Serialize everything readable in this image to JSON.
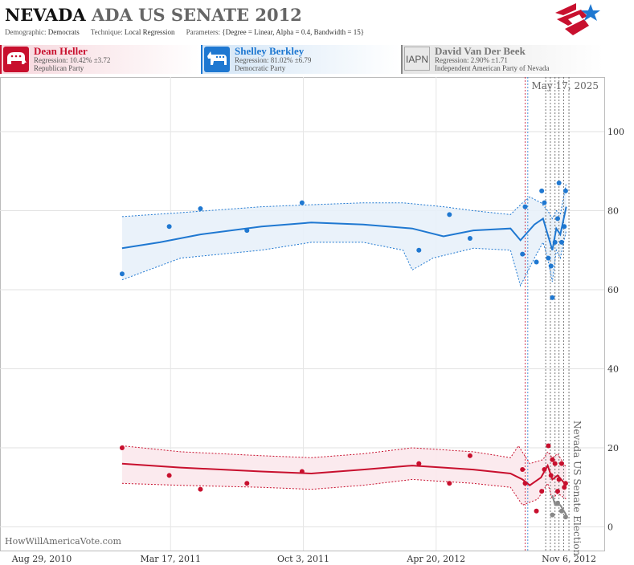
{
  "header": {
    "title_state": "NEVADA",
    "title_rest": "ADA US SENATE 2012",
    "demographic_label": "Demographic:",
    "demographic": "Democrats",
    "technique_label": "Technique:",
    "technique": "Local Regression",
    "parameters_label": "Parameters:",
    "parameters": "{Degree = Linear, Alpha = 0.4, Bandwidth = 15}"
  },
  "candidates": [
    {
      "name": "Dean Heller",
      "regression": "Regression: 10.42% ±3.72",
      "party": "Republican Party",
      "color": "#c8102e",
      "icon": "elephant-icon"
    },
    {
      "name": "Shelley Berkley",
      "regression": "Regression: 81.02% ±6.79",
      "party": "Democratic Party",
      "color": "#1f78d1",
      "icon": "donkey-icon"
    },
    {
      "name": "David Van Der Beek",
      "regression": "Regression: 2.90% ±1.71",
      "party": "Independent American Party  of Nevada",
      "color": "#888888",
      "icon_text": "IAPN"
    }
  ],
  "footer": {
    "watermark": "HowWillAmericaVote.com"
  },
  "chart_data": {
    "type": "scatter",
    "current_date": "May 17, 2025",
    "election_label": "Nevada US Senate Election",
    "x_ticks": [
      "Aug 29, 2010",
      "Mar 17, 2011",
      "Oct 3, 2011",
      "Apr 20, 2012",
      "Nov 6, 2012"
    ],
    "x_range": [
      "2010-08-29",
      "2012-11-12"
    ],
    "y_ticks": [
      0,
      20,
      40,
      60,
      80,
      100
    ],
    "ylim": [
      -6,
      113
    ],
    "grid": true,
    "marker_dates": [
      "2012-09-01",
      "2012-09-05",
      "2012-10-02",
      "2012-10-09",
      "2012-10-16",
      "2012-10-22",
      "2012-10-29",
      "2012-11-06"
    ],
    "marker_colors": [
      "#c8102e",
      "#1f78d1",
      "#555555",
      "#555555",
      "#555555",
      "#555555",
      "#555555",
      "#555555"
    ],
    "series": [
      {
        "name": "Shelley Berkley",
        "color": "#1f78d1",
        "fill": "#e8f1fa",
        "points": [
          [
            "2011-01-03",
            64
          ],
          [
            "2011-03-15",
            76
          ],
          [
            "2011-05-01",
            80.5
          ],
          [
            "2011-07-10",
            75
          ],
          [
            "2011-10-01",
            82
          ],
          [
            "2012-03-25",
            70
          ],
          [
            "2012-05-10",
            79
          ],
          [
            "2012-06-10",
            73
          ],
          [
            "2012-08-28",
            69
          ],
          [
            "2012-09-01",
            81
          ],
          [
            "2012-09-18",
            67
          ],
          [
            "2012-09-26",
            85
          ],
          [
            "2012-09-30",
            82
          ],
          [
            "2012-10-06",
            68
          ],
          [
            "2012-10-10",
            66
          ],
          [
            "2012-10-12",
            58
          ],
          [
            "2012-10-16",
            72
          ],
          [
            "2012-10-20",
            78
          ],
          [
            "2012-10-22",
            87
          ],
          [
            "2012-10-26",
            72
          ],
          [
            "2012-10-30",
            76
          ],
          [
            "2012-11-01",
            85
          ]
        ],
        "fit": [
          [
            "2011-01-03",
            70.5
          ],
          [
            "2011-03-01",
            72
          ],
          [
            "2011-05-01",
            74
          ],
          [
            "2011-08-01",
            76
          ],
          [
            "2011-10-15",
            77
          ],
          [
            "2012-01-01",
            76.5
          ],
          [
            "2012-03-15",
            75.5
          ],
          [
            "2012-05-01",
            73.5
          ],
          [
            "2012-06-15",
            75
          ],
          [
            "2012-08-10",
            75.5
          ],
          [
            "2012-08-25",
            72.5
          ],
          [
            "2012-09-15",
            76.5
          ],
          [
            "2012-09-28",
            78
          ],
          [
            "2012-10-05",
            74
          ],
          [
            "2012-10-12",
            70
          ],
          [
            "2012-10-18",
            75.5
          ],
          [
            "2012-10-24",
            74
          ],
          [
            "2012-11-02",
            81
          ]
        ],
        "upper": [
          [
            "2011-01-03",
            78.5
          ],
          [
            "2011-04-01",
            79.5
          ],
          [
            "2011-08-01",
            81
          ],
          [
            "2011-10-15",
            81.5
          ],
          [
            "2012-01-01",
            82
          ],
          [
            "2012-03-01",
            82
          ],
          [
            "2012-05-01",
            81
          ],
          [
            "2012-06-15",
            80
          ],
          [
            "2012-08-10",
            79
          ],
          [
            "2012-08-28",
            82
          ],
          [
            "2012-09-08",
            83.5
          ],
          [
            "2012-09-25",
            82
          ],
          [
            "2012-10-05",
            80
          ],
          [
            "2012-10-12",
            78
          ],
          [
            "2012-10-18",
            80
          ],
          [
            "2012-10-24",
            79
          ],
          [
            "2012-11-02",
            87
          ]
        ],
        "lower": [
          [
            "2011-01-03",
            62.5
          ],
          [
            "2011-04-01",
            68
          ],
          [
            "2011-08-01",
            70
          ],
          [
            "2011-10-15",
            72
          ],
          [
            "2012-01-01",
            72
          ],
          [
            "2012-03-01",
            70
          ],
          [
            "2012-03-15",
            65
          ],
          [
            "2012-04-15",
            68
          ],
          [
            "2012-06-15",
            70.5
          ],
          [
            "2012-08-10",
            70
          ],
          [
            "2012-08-25",
            61
          ],
          [
            "2012-09-15",
            68
          ],
          [
            "2012-09-28",
            72
          ],
          [
            "2012-10-05",
            68
          ],
          [
            "2012-10-12",
            62
          ],
          [
            "2012-10-18",
            70
          ],
          [
            "2012-10-24",
            68
          ],
          [
            "2012-11-02",
            75
          ]
        ]
      },
      {
        "name": "Dean Heller",
        "color": "#c8102e",
        "fill": "#fbe8ec",
        "points": [
          [
            "2011-01-03",
            20
          ],
          [
            "2011-03-15",
            13
          ],
          [
            "2011-05-01",
            9.5
          ],
          [
            "2011-07-10",
            11
          ],
          [
            "2011-10-01",
            14
          ],
          [
            "2012-03-25",
            16
          ],
          [
            "2012-05-10",
            11
          ],
          [
            "2012-06-10",
            18
          ],
          [
            "2012-08-28",
            14.5
          ],
          [
            "2012-09-01",
            11
          ],
          [
            "2012-09-18",
            4
          ],
          [
            "2012-09-26",
            9
          ],
          [
            "2012-09-30",
            14.5
          ],
          [
            "2012-10-06",
            20.5
          ],
          [
            "2012-10-10",
            13
          ],
          [
            "2012-10-12",
            17
          ],
          [
            "2012-10-16",
            16
          ],
          [
            "2012-10-20",
            9
          ],
          [
            "2012-10-22",
            12
          ],
          [
            "2012-10-26",
            16
          ],
          [
            "2012-10-30",
            10
          ],
          [
            "2012-11-01",
            11
          ]
        ],
        "fit": [
          [
            "2011-01-03",
            16
          ],
          [
            "2011-04-01",
            15
          ],
          [
            "2011-08-01",
            14
          ],
          [
            "2011-10-15",
            13.5
          ],
          [
            "2012-01-01",
            14.5
          ],
          [
            "2012-03-15",
            15.5
          ],
          [
            "2012-05-01",
            15
          ],
          [
            "2012-06-15",
            14.5
          ],
          [
            "2012-08-10",
            13.5
          ],
          [
            "2012-08-28",
            12
          ],
          [
            "2012-09-08",
            10.5
          ],
          [
            "2012-09-25",
            12.5
          ],
          [
            "2012-10-05",
            15.5
          ],
          [
            "2012-10-12",
            12
          ],
          [
            "2012-10-20",
            13
          ],
          [
            "2012-11-02",
            10.5
          ]
        ],
        "upper": [
          [
            "2011-01-03",
            20.5
          ],
          [
            "2011-04-01",
            19
          ],
          [
            "2011-08-01",
            18
          ],
          [
            "2011-10-15",
            17.5
          ],
          [
            "2012-01-01",
            18.5
          ],
          [
            "2012-03-15",
            20
          ],
          [
            "2012-06-15",
            19
          ],
          [
            "2012-08-10",
            17.5
          ],
          [
            "2012-08-22",
            20.5
          ],
          [
            "2012-09-08",
            16
          ],
          [
            "2012-09-28",
            17
          ],
          [
            "2012-10-05",
            19
          ],
          [
            "2012-10-12",
            17.5
          ],
          [
            "2012-10-20",
            18.5
          ],
          [
            "2012-11-02",
            15
          ]
        ],
        "lower": [
          [
            "2011-01-03",
            11
          ],
          [
            "2011-04-01",
            10.5
          ],
          [
            "2011-08-01",
            10
          ],
          [
            "2011-10-15",
            9.5
          ],
          [
            "2012-01-01",
            10.5
          ],
          [
            "2012-03-15",
            12
          ],
          [
            "2012-06-15",
            11
          ],
          [
            "2012-08-10",
            10
          ],
          [
            "2012-08-28",
            5.5
          ],
          [
            "2012-09-20",
            7
          ],
          [
            "2012-10-05",
            11
          ],
          [
            "2012-10-12",
            7
          ],
          [
            "2012-10-20",
            8.5
          ],
          [
            "2012-11-02",
            7
          ]
        ]
      },
      {
        "name": "David Van Der Beek",
        "color": "#888888",
        "fill": "#eeeeee",
        "points": [
          [
            "2012-10-12",
            3
          ],
          [
            "2012-10-20",
            6
          ],
          [
            "2012-10-26",
            4
          ],
          [
            "2012-11-01",
            2.5
          ]
        ],
        "fit": [
          [
            "2012-10-12",
            8
          ],
          [
            "2012-10-16",
            5.5
          ],
          [
            "2012-10-24",
            5.5
          ],
          [
            "2012-11-02",
            3
          ]
        ],
        "upper": [],
        "lower": []
      }
    ]
  }
}
